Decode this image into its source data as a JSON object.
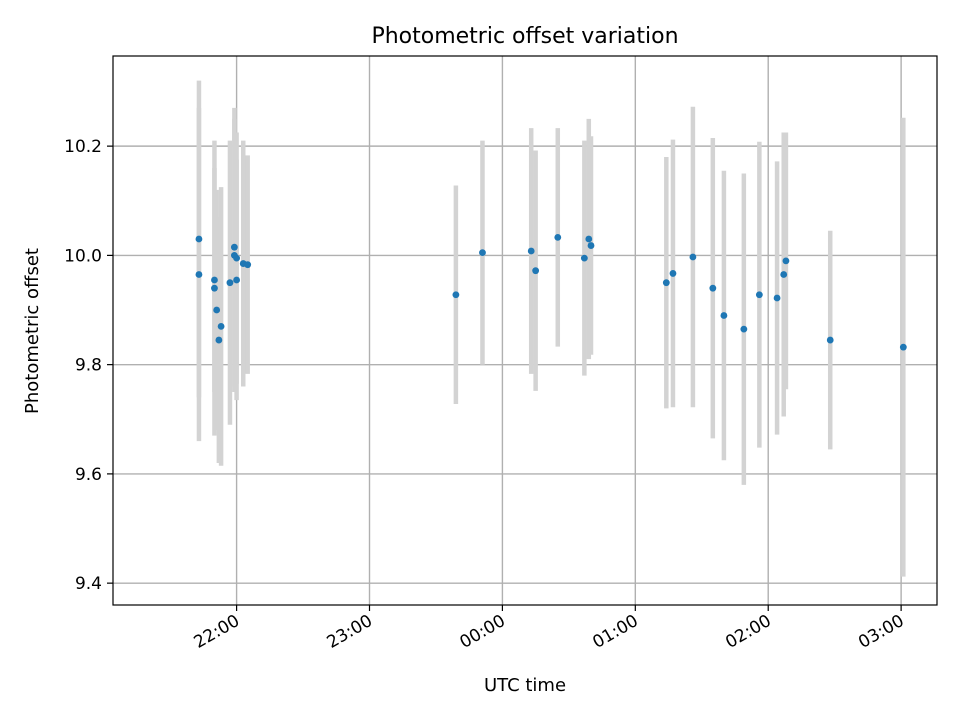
{
  "chart_data": {
    "type": "scatter",
    "title": "Photometric offset variation",
    "xlabel": "UTC time",
    "ylabel": "Photometric offset",
    "ylim": [
      9.36,
      10.365
    ],
    "xlim_hours": [
      21.07,
      27.27
    ],
    "grid": true,
    "legend": "none",
    "x_ticks": [
      {
        "label": "22:00",
        "hour": 22
      },
      {
        "label": "23:00",
        "hour": 23
      },
      {
        "label": "00:00",
        "hour": 24
      },
      {
        "label": "01:00",
        "hour": 25
      },
      {
        "label": "02:00",
        "hour": 26
      },
      {
        "label": "03:00",
        "hour": 27
      }
    ],
    "y_ticks": [
      9.4,
      9.6,
      9.8,
      10.0,
      10.2
    ],
    "colors": {
      "marker": "#1f77b4",
      "errorbar": "#d3d3d3",
      "grid": "#b0b0b0",
      "axis": "#000000"
    },
    "series": [
      {
        "points": [
          {
            "x": "21:43",
            "y": 10.03,
            "err": 0.29
          },
          {
            "x": "21:43",
            "y": 9.965,
            "err": 0.305
          },
          {
            "x": "21:50",
            "y": 9.955,
            "err": 0.205
          },
          {
            "x": "21:50",
            "y": 9.94,
            "err": 0.27
          },
          {
            "x": "21:51",
            "y": 9.9,
            "err": 0.22
          },
          {
            "x": "21:52",
            "y": 9.845,
            "err": 0.225
          },
          {
            "x": "21:53",
            "y": 9.87,
            "err": 0.255
          },
          {
            "x": "21:57",
            "y": 9.95,
            "err": 0.26
          },
          {
            "x": "21:59",
            "y": 10.015,
            "err": 0.255
          },
          {
            "x": "21:59",
            "y": 10.0,
            "err": 0.25
          },
          {
            "x": "22:00",
            "y": 9.995,
            "err": 0.23
          },
          {
            "x": "22:00",
            "y": 9.955,
            "err": 0.22
          },
          {
            "x": "22:03",
            "y": 9.985,
            "err": 0.225
          },
          {
            "x": "22:05",
            "y": 9.983,
            "err": 0.2
          },
          {
            "x": "23:39",
            "y": 9.928,
            "err": 0.2
          },
          {
            "x": "23:51",
            "y": 10.005,
            "err": 0.205
          },
          {
            "x": "00:13",
            "y": 10.008,
            "err": 0.225
          },
          {
            "x": "00:15",
            "y": 9.972,
            "err": 0.22
          },
          {
            "x": "00:25",
            "y": 10.033,
            "err": 0.2
          },
          {
            "x": "00:37",
            "y": 9.995,
            "err": 0.215
          },
          {
            "x": "00:39",
            "y": 10.03,
            "err": 0.22
          },
          {
            "x": "00:40",
            "y": 10.018,
            "err": 0.2
          },
          {
            "x": "01:14",
            "y": 9.95,
            "err": 0.23
          },
          {
            "x": "01:17",
            "y": 9.967,
            "err": 0.245
          },
          {
            "x": "01:26",
            "y": 9.997,
            "err": 0.275
          },
          {
            "x": "01:35",
            "y": 9.94,
            "err": 0.275
          },
          {
            "x": "01:40",
            "y": 9.89,
            "err": 0.265
          },
          {
            "x": "01:49",
            "y": 9.865,
            "err": 0.285
          },
          {
            "x": "01:56",
            "y": 9.928,
            "err": 0.28
          },
          {
            "x": "02:04",
            "y": 9.922,
            "err": 0.25
          },
          {
            "x": "02:07",
            "y": 9.965,
            "err": 0.26
          },
          {
            "x": "02:08",
            "y": 9.99,
            "err": 0.235
          },
          {
            "x": "02:28",
            "y": 9.845,
            "err": 0.2
          },
          {
            "x": "03:01",
            "y": 9.832,
            "err": 0.42
          }
        ]
      }
    ]
  }
}
